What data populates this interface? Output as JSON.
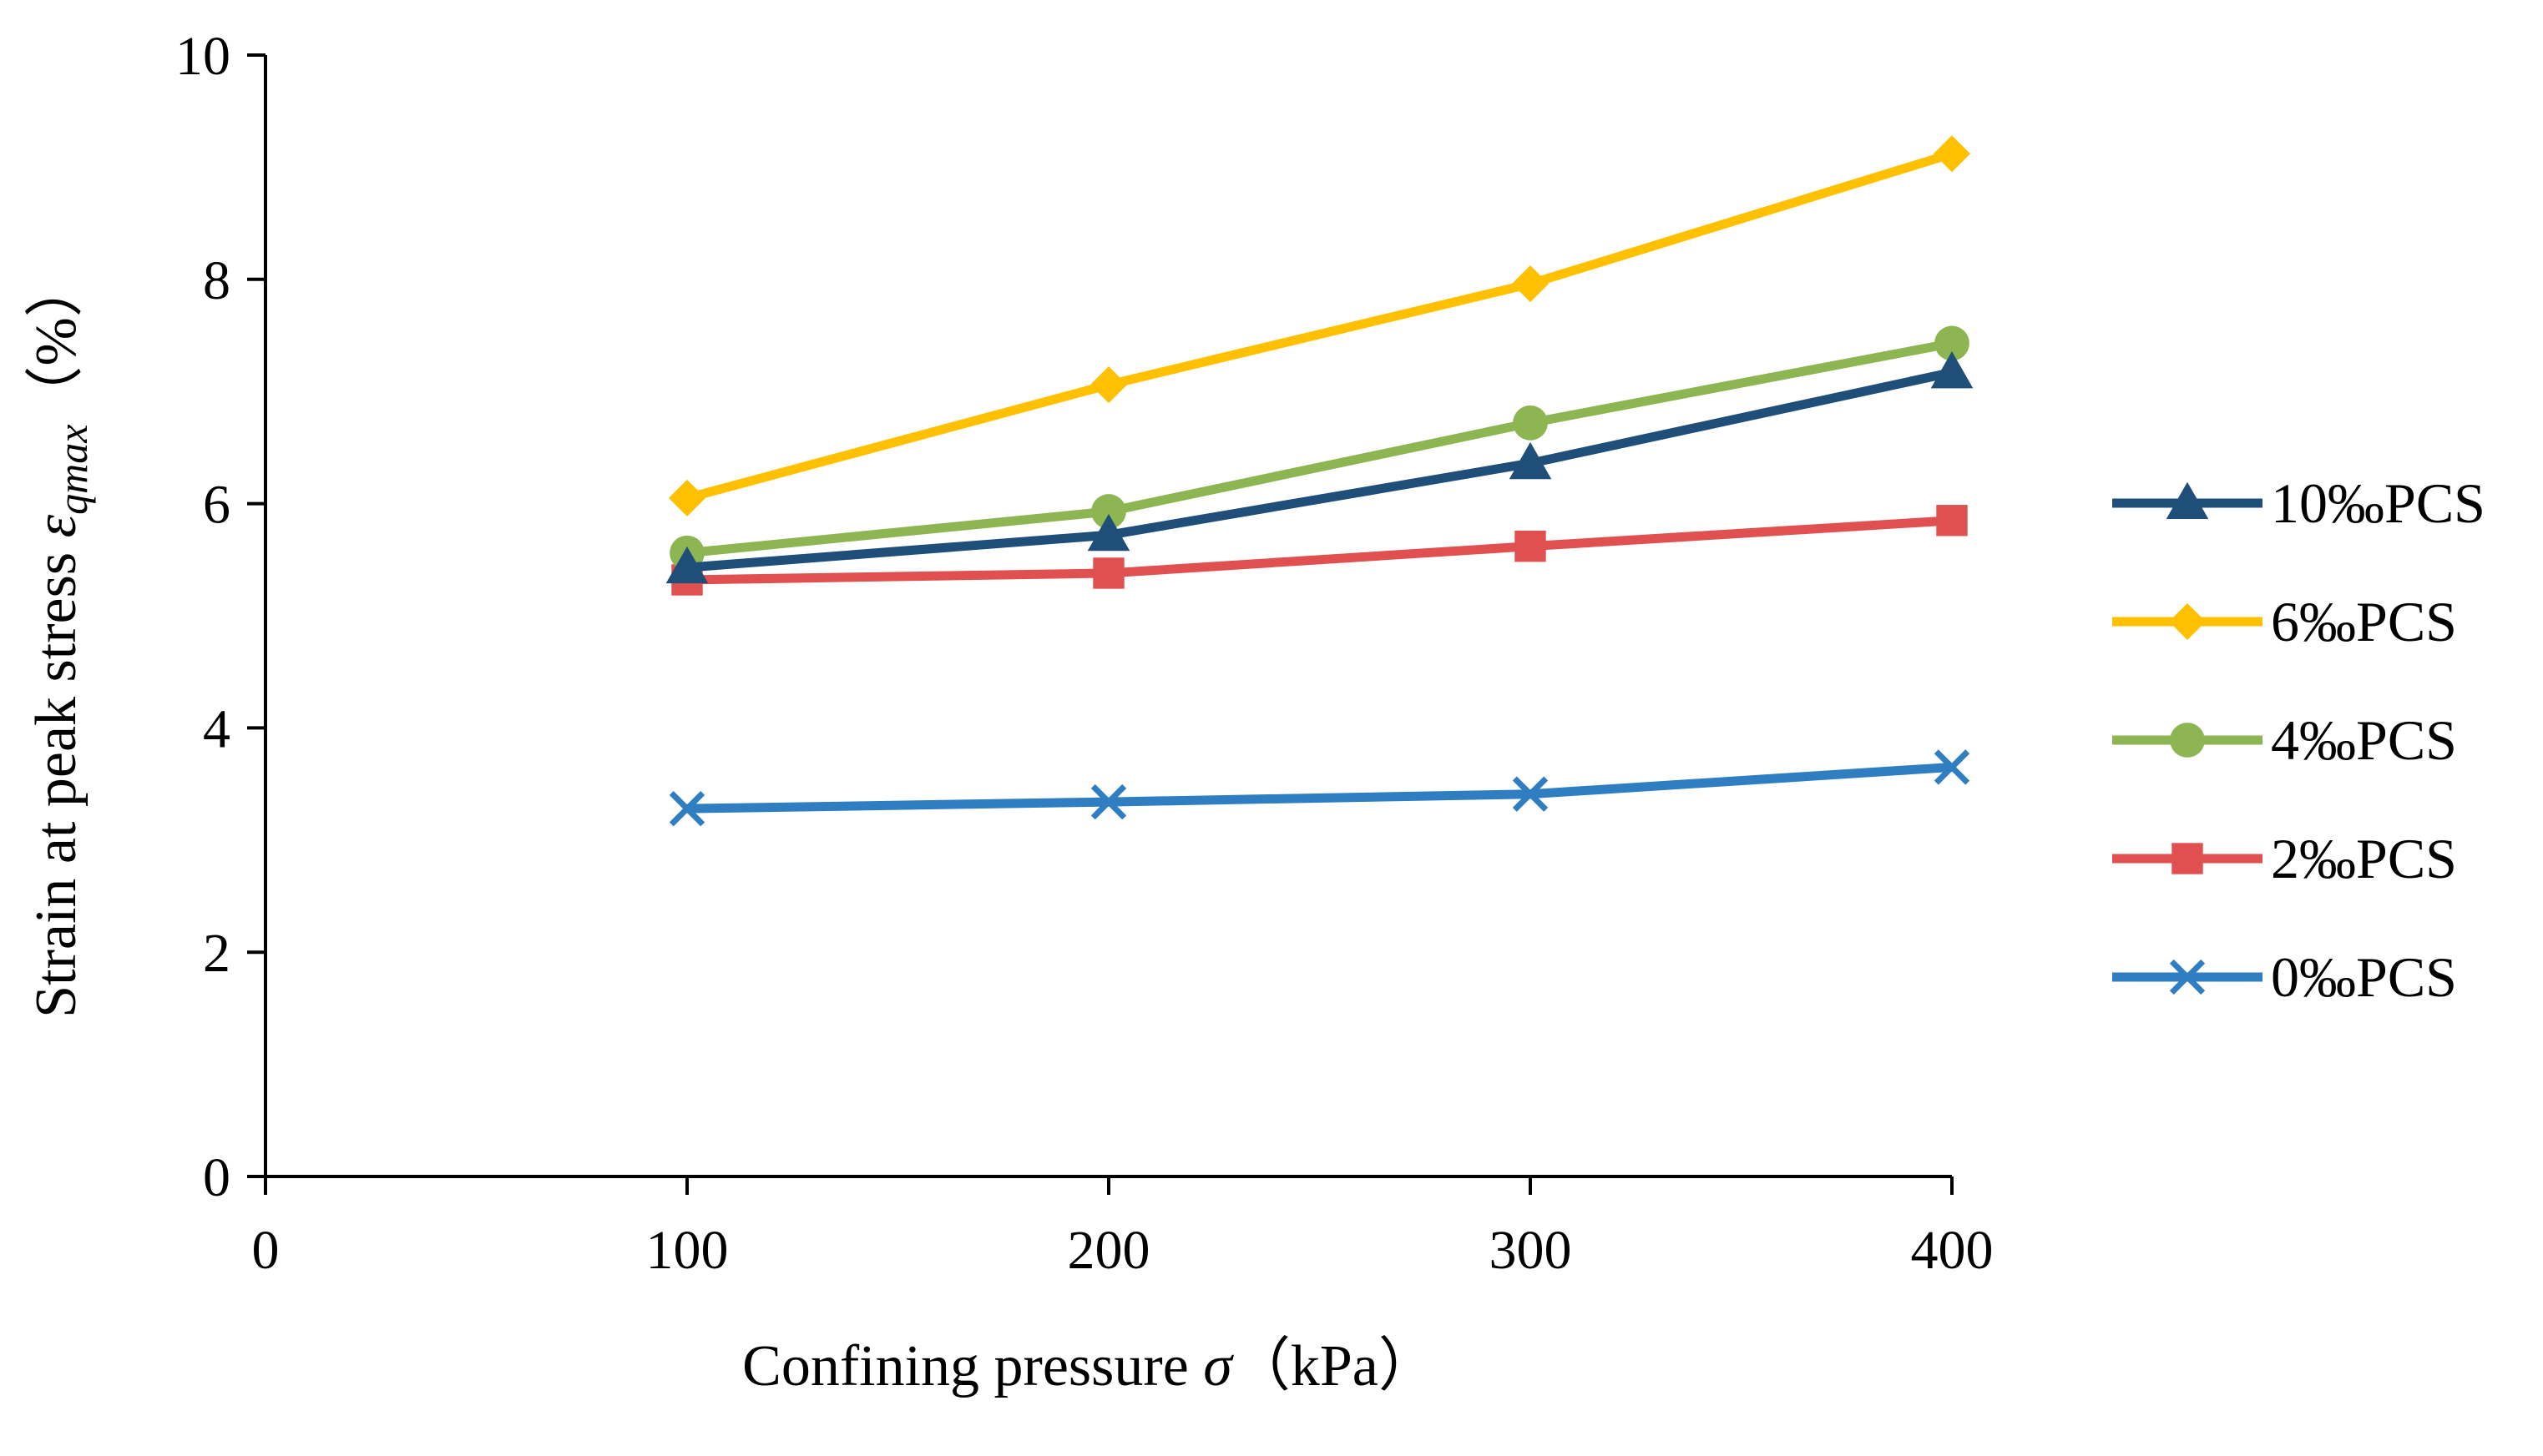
{
  "chart_data": {
    "type": "line",
    "x": [
      100,
      200,
      300,
      400
    ],
    "xlim": [
      0,
      400
    ],
    "ylim": [
      0,
      10
    ],
    "xticks": [
      0,
      100,
      200,
      300,
      400
    ],
    "yticks": [
      0,
      2,
      4,
      6,
      8,
      10
    ],
    "xticklabels": [
      "0",
      "100",
      "200",
      "300",
      "400"
    ],
    "yticklabels": [
      "0",
      "2",
      "4",
      "6",
      "8",
      "10"
    ],
    "xlabel": {
      "prefix": "Confining pressure ",
      "symbol": "σ",
      "suffix": "（kPa）"
    },
    "ylabel": {
      "prefix": "Strain at peak stress ",
      "symbol": "ε",
      "subscript": "qmax",
      "suffix": "（%）"
    },
    "legend_position": "right",
    "grid": false,
    "series": [
      {
        "name": "10‰PCS",
        "color": "#1F4E79",
        "marker": "triangle",
        "values": [
          5.43,
          5.72,
          6.36,
          7.17
        ]
      },
      {
        "name": "6‰PCS",
        "color": "#FFC000",
        "marker": "diamond",
        "values": [
          6.05,
          7.06,
          7.96,
          9.12
        ]
      },
      {
        "name": "4‰PCS",
        "color": "#8DB653",
        "marker": "circle",
        "values": [
          5.56,
          5.93,
          6.72,
          7.43
        ]
      },
      {
        "name": "2‰PCS",
        "color": "#E05050",
        "marker": "square",
        "values": [
          5.32,
          5.38,
          5.62,
          5.85
        ]
      },
      {
        "name": "0‰PCS",
        "color": "#2E7EC1",
        "marker": "x",
        "values": [
          3.28,
          3.34,
          3.41,
          3.65
        ]
      }
    ]
  }
}
